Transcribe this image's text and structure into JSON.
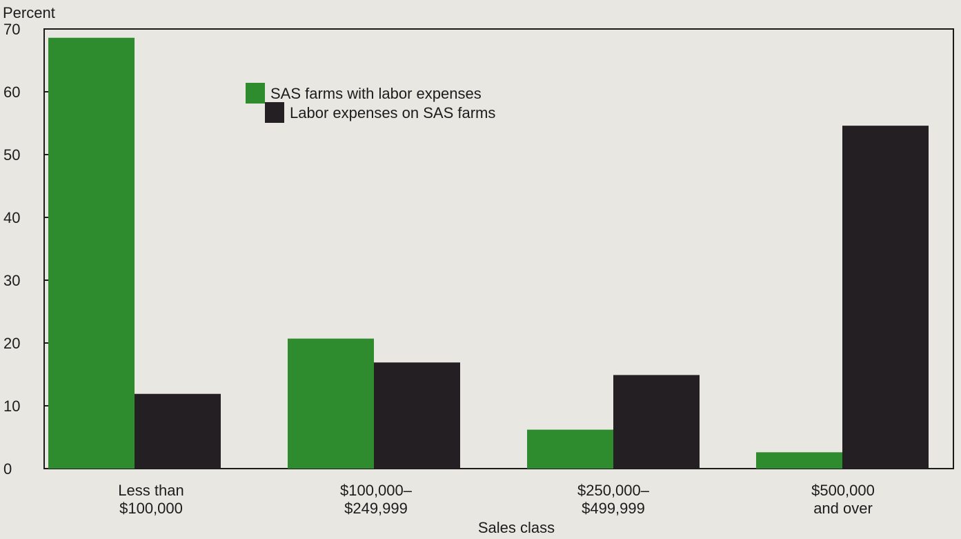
{
  "chart_data": {
    "type": "bar",
    "ylabel": "Percent",
    "xlabel": "Sales class",
    "ylim": [
      0,
      70
    ],
    "yticks": [
      0,
      10,
      20,
      30,
      40,
      50,
      60,
      70
    ],
    "categories": [
      [
        "Less than",
        "$100,000"
      ],
      [
        "$100,000–",
        "$249,999"
      ],
      [
        "$250,000–",
        "$499,999"
      ],
      [
        "$500,000",
        "and over"
      ]
    ],
    "series": [
      {
        "name": "SAS farms with labor expenses",
        "color": "#2e8b2e",
        "values": [
          68.6,
          20.7,
          6.2,
          2.6
        ]
      },
      {
        "name": "Labor expenses on SAS farms",
        "color": "#231f22",
        "values": [
          11.9,
          16.9,
          14.9,
          54.6
        ]
      }
    ],
    "legend_position": "top-left",
    "grid": false
  }
}
